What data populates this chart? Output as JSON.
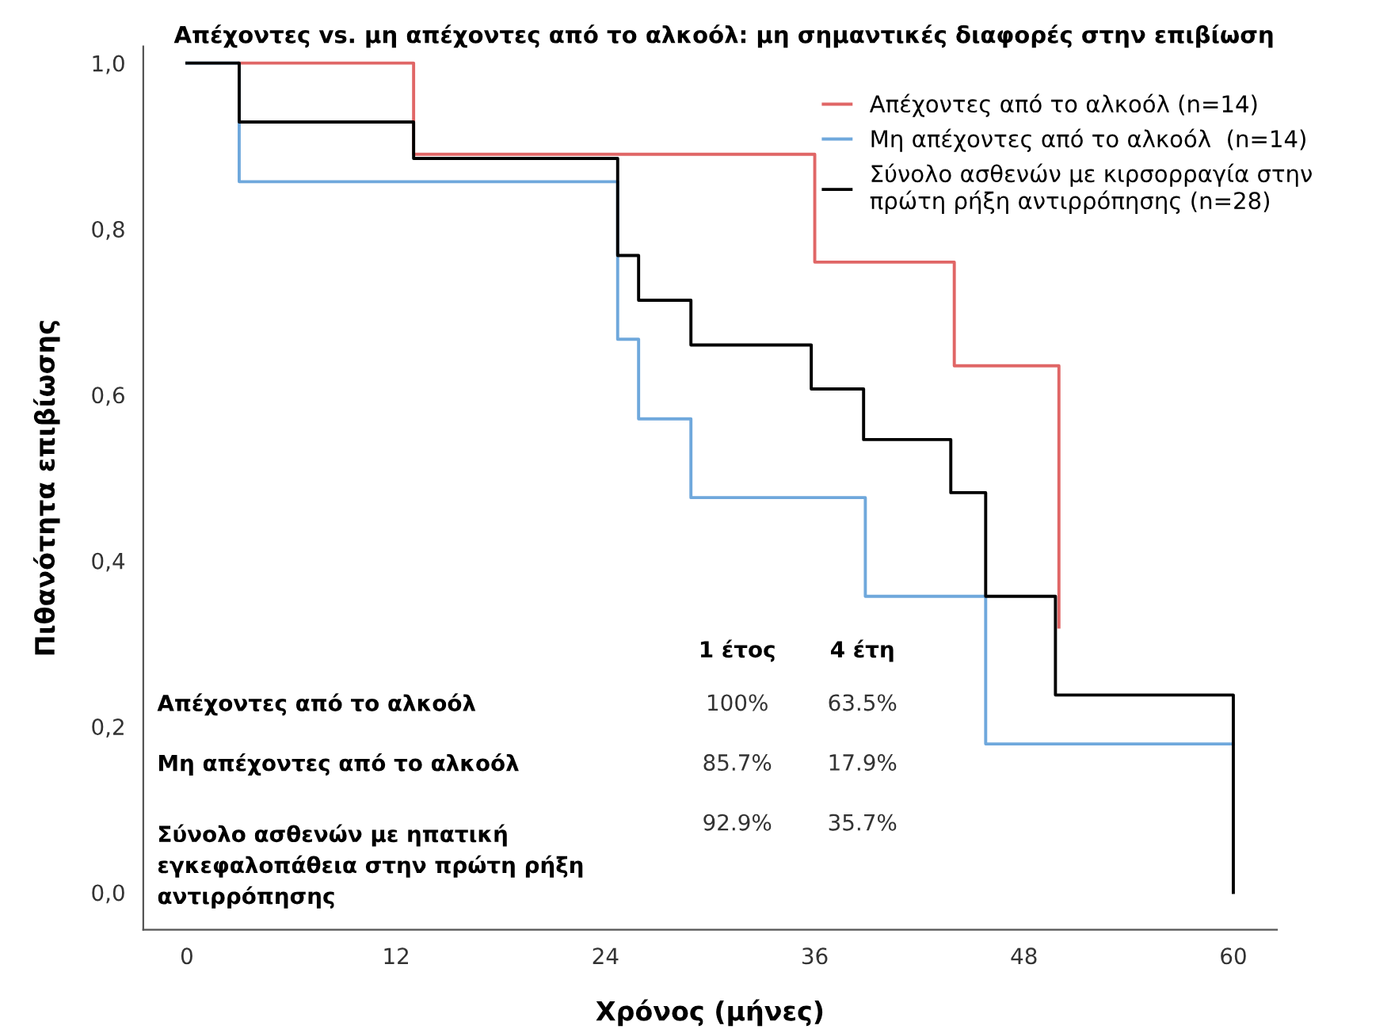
{
  "chart_data": {
    "type": "step",
    "title": "Απέχοντες vs. μη απέχοντες από το αλκοόλ: μη σημαντικές διαφορές στην επιβίωση",
    "xlabel": "Χρόνος (μήνες)",
    "ylabel": "Πιθανότητα επιβίωσης",
    "series": [
      {
        "name": "Απέχοντες από το αλκοόλ (n=14)",
        "color": "#e06666",
        "x": [
          3,
          13,
          36,
          44,
          50,
          50
        ],
        "values": [
          1.0,
          0.89,
          0.76,
          0.635,
          0.635,
          0.32
        ]
      },
      {
        "name": "Μη απέχοντες από το αλκοόλ  (n=14)",
        "color": "#6fa8dc",
        "x": [
          0,
          3,
          24.7,
          25.9,
          28.9,
          38.9,
          45.8,
          60
        ],
        "values": [
          1.0,
          0.857,
          0.667,
          0.571,
          0.476,
          0.357,
          0.179,
          0.179
        ]
      },
      {
        "name": "Σύνολο ασθενών με κιρσορραγία στην\nπρώτη ρήξη αντιρρόπησης (n=28)",
        "color": "#000000",
        "x": [
          0,
          3,
          13,
          24.7,
          25.9,
          28.9,
          35.8,
          38.8,
          43.8,
          45.8,
          49.8,
          60,
          60
        ],
        "values": [
          1.0,
          0.929,
          0.885,
          0.768,
          0.714,
          0.66,
          0.607,
          0.546,
          0.482,
          0.357,
          0.238,
          0.238,
          0.0
        ]
      }
    ],
    "xlim": [
      -2.5,
      62.5
    ],
    "xticks": [
      0,
      12,
      24,
      36,
      48,
      60
    ],
    "ylim": [
      -0.045,
      1.02
    ],
    "yticks": [
      {
        "value": 0,
        "label": "0,0"
      },
      {
        "value": 0.2,
        "label": "0,2"
      },
      {
        "value": 0.4,
        "label": "0,4"
      },
      {
        "value": 0.6,
        "label": "0,6"
      },
      {
        "value": 0.8,
        "label": "0,8"
      },
      {
        "value": 1.0,
        "label": "1,0"
      }
    ],
    "annotations": [
      "1 έτος",
      "4 έτη",
      "Απέχοντες από το αλκοόλ",
      "100%",
      "63.5%",
      "Μη απέχοντες από το αλκοόλ",
      "85.7%",
      "17.9%",
      "Σύνολο ασθενών με ηπατική\nεγκεφαλοπάθεια στην πρώτη ρήξη\nαντιρρόπησης",
      "92.9%",
      "35.7%"
    ],
    "grid": false,
    "legend": "top right",
    "marker": "none",
    "line_style": "solid"
  }
}
